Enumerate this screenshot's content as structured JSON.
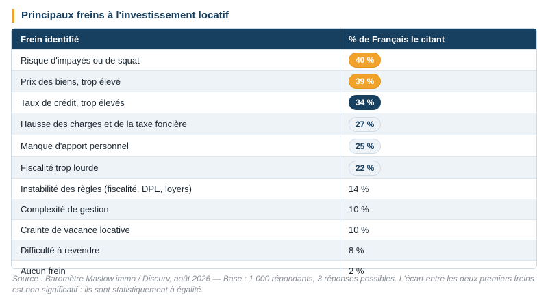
{
  "title": "Principaux freins à l'investissement locatif",
  "table": {
    "headers": [
      "Frein identifié",
      "% de Français le citant"
    ],
    "rows": [
      {
        "label": "Risque d'impayés ou de squat",
        "value": "40 %",
        "badge": "orange"
      },
      {
        "label": "Prix des biens, trop élevé",
        "value": "39 %",
        "badge": "orange"
      },
      {
        "label": "Taux de crédit, trop élevés",
        "value": "34 %",
        "badge": "navy"
      },
      {
        "label": "Hausse des charges et de la taxe foncière",
        "value": "27 %",
        "badge": "light"
      },
      {
        "label": "Manque d'apport personnel",
        "value": "25 %",
        "badge": "light"
      },
      {
        "label": "Fiscalité trop lourde",
        "value": "22 %",
        "badge": "light"
      },
      {
        "label": "Instabilité des règles (fiscalité, DPE, loyers)",
        "value": "14 %",
        "badge": "none"
      },
      {
        "label": "Complexité de gestion",
        "value": "10 %",
        "badge": "none"
      },
      {
        "label": "Crainte de vacance locative",
        "value": "10 %",
        "badge": "none"
      },
      {
        "label": "Difficulté à revendre",
        "value": "8 %",
        "badge": "none"
      },
      {
        "label": "Aucun frein",
        "value": "2 %",
        "badge": "none"
      }
    ]
  },
  "source": "Source : Baromètre Maslow.immo / Discurv, août 2026 — Base : 1 000 répondants, 3 réponses possibles. L'écart entre les deux premiers freins est non significatif : ils sont statistiquement à égalité.",
  "colors": {
    "accent": "#f0a22b",
    "header": "#173f5f",
    "alt_row": "#eef3f8"
  }
}
